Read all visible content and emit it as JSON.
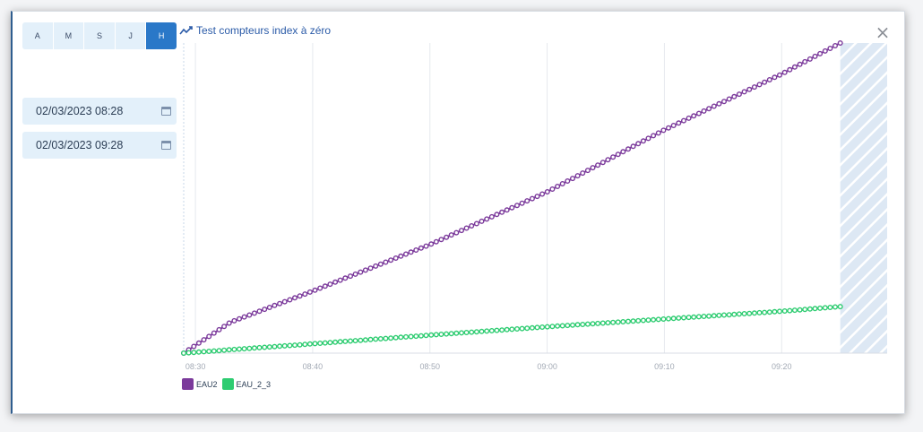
{
  "period_buttons": [
    {
      "label": "A",
      "active": false
    },
    {
      "label": "M",
      "active": false
    },
    {
      "label": "S",
      "active": false
    },
    {
      "label": "J",
      "active": false
    },
    {
      "label": "H",
      "active": true
    }
  ],
  "date_start": "02/03/2023 08:28",
  "date_end": "02/03/2023 09:28",
  "close_label": "×",
  "icons": {
    "chart": "trend-line-icon",
    "calendar": "calendar-icon",
    "close": "close-icon"
  },
  "colors": {
    "accent": "#2a78c8",
    "eau2": "#7b3a9b",
    "eau2_3": "#2ecc71",
    "hatch": "#c9d9ec"
  },
  "chart_data": {
    "type": "line",
    "title": "Test compteurs index à zéro",
    "x_tick_labels": [
      "08:30",
      "08:40",
      "08:50",
      "09:00",
      "09:10",
      "09:20"
    ],
    "x_tick_minutes": [
      0,
      10,
      20,
      30,
      40,
      50
    ],
    "x_range_minutes": [
      -1,
      59
    ],
    "x_data_range_minutes": [
      -1,
      55
    ],
    "future_zone_start_minutes": 55,
    "y_range": [
      0,
      100
    ],
    "y_axis_labels_visible": false,
    "grid": "vertical",
    "legend_position": "bottom-left",
    "series": [
      {
        "name": "EAU2",
        "color": "#7b3a9b",
        "points": [
          [
            -1,
            0
          ],
          [
            3,
            10
          ],
          [
            10,
            20
          ],
          [
            20,
            35
          ],
          [
            30,
            52
          ],
          [
            40,
            72
          ],
          [
            50,
            90
          ],
          [
            55,
            100
          ]
        ]
      },
      {
        "name": "EAU_2_3",
        "color": "#2ecc71",
        "points": [
          [
            -1,
            0
          ],
          [
            10,
            3
          ],
          [
            20,
            5.8
          ],
          [
            30,
            8.5
          ],
          [
            40,
            11
          ],
          [
            50,
            13.5
          ],
          [
            55,
            15
          ]
        ]
      }
    ]
  }
}
